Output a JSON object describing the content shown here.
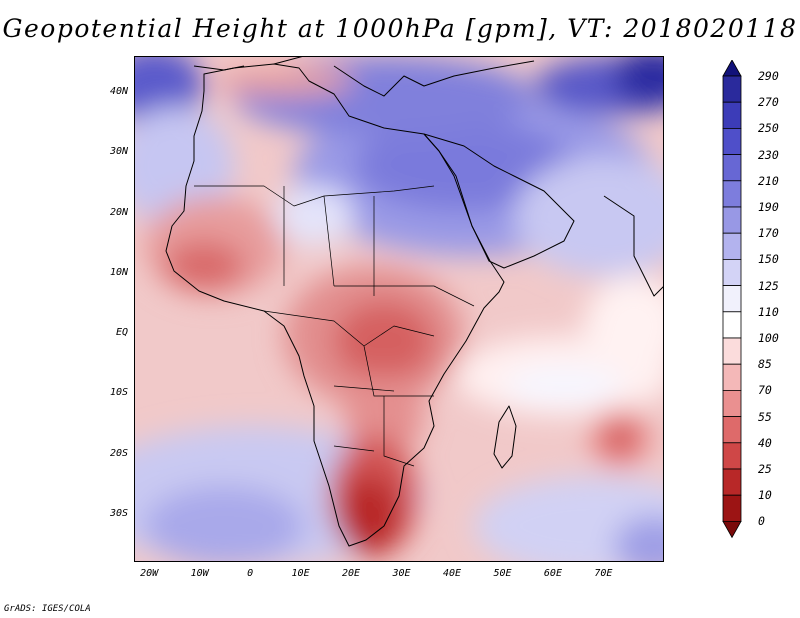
{
  "title": "Geopotential Height at 1000hPa [gpm], VT: 2018020118",
  "credit": "GrADS: IGES/COLA",
  "map": {
    "variable": "Geopotential Height at 1000hPa",
    "units": "gpm",
    "valid_time": "2018020118",
    "lon_range": [
      -23,
      82
    ],
    "lat_range": [
      -38,
      46
    ],
    "lat_ticks": [
      "40N",
      "30N",
      "20N",
      "10N",
      "EQ",
      "10S",
      "20S",
      "30S"
    ],
    "lon_ticks": [
      "20W",
      "10W",
      "0",
      "10E",
      "20E",
      "30E",
      "40E",
      "50E",
      "60E",
      "70E"
    ]
  },
  "colorbar": {
    "levels": [
      "290",
      "270",
      "250",
      "230",
      "210",
      "190",
      "170",
      "150",
      "125",
      "110",
      "100",
      "85",
      "70",
      "55",
      "40",
      "25",
      "10",
      "0"
    ],
    "colors": [
      "#12127a",
      "#2a2a9c",
      "#3c3cb8",
      "#4f4fc9",
      "#6767d4",
      "#7d7ddd",
      "#9898e5",
      "#b3b3ee",
      "#d3d3f6",
      "#f1f1fc",
      "#ffffff",
      "#fbdcdc",
      "#f4b8b8",
      "#ea9090",
      "#de6a6a",
      "#cf4747",
      "#b82828",
      "#9c1414",
      "#7a0a0a"
    ]
  }
}
